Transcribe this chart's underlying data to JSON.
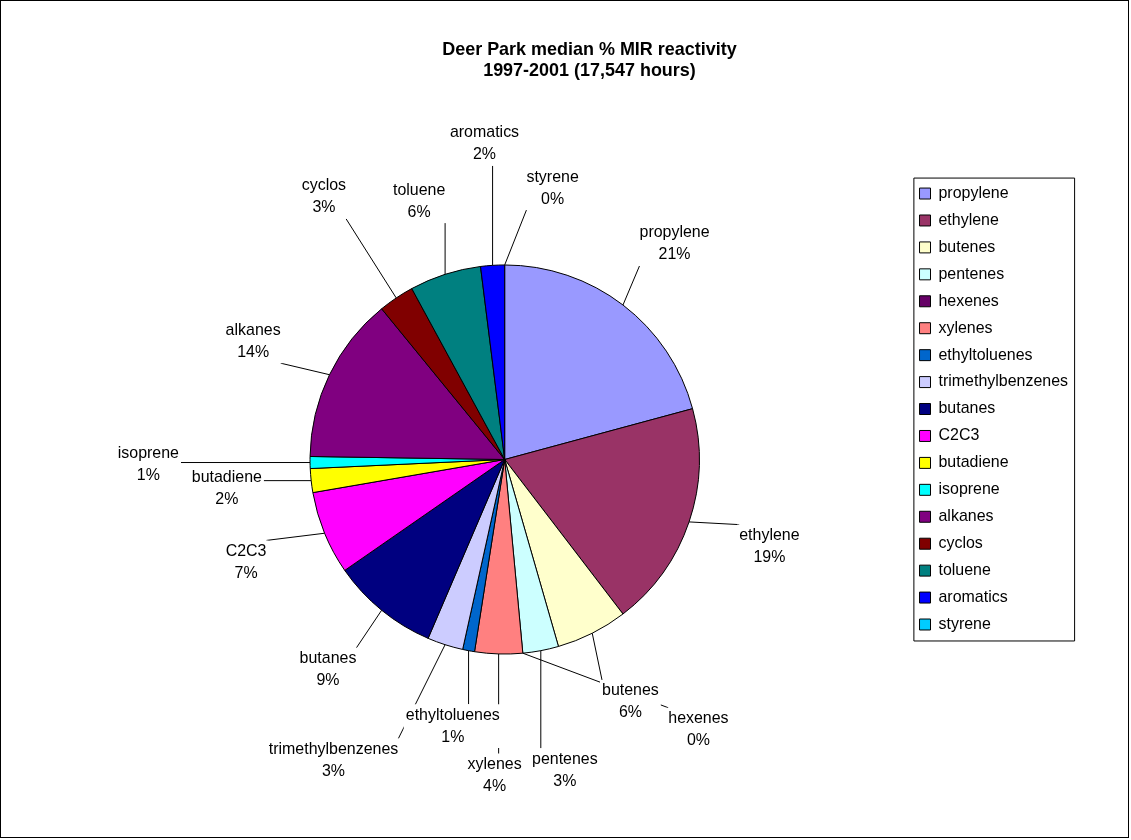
{
  "chart_data": {
    "type": "pie",
    "title": "Deer Park median % MIR reactivity\n1997-2001 (17,547 hours)",
    "categories": [
      "propylene",
      "ethylene",
      "butenes",
      "pentenes",
      "hexenes",
      "xylenes",
      "ethyltoluenes",
      "trimethylbenzenes",
      "butanes",
      "C2C3",
      "butadiene",
      "isoprene",
      "alkanes",
      "cyclos",
      "toluene",
      "aromatics",
      "styrene"
    ],
    "values": [
      21,
      19,
      6,
      3,
      0,
      4,
      1,
      3,
      9,
      7,
      2,
      1,
      14,
      3,
      6,
      2,
      0
    ],
    "value_labels": [
      "21%",
      "19%",
      "6%",
      "3%",
      "0%",
      "4%",
      "1%",
      "3%",
      "9%",
      "7%",
      "2%",
      "1%",
      "14%",
      "3%",
      "6%",
      "2%",
      "0%"
    ],
    "colors": [
      "#9999ff",
      "#993366",
      "#ffffcc",
      "#ccffff",
      "#660066",
      "#ff8080",
      "#0066cc",
      "#ccccff",
      "#000080",
      "#ff00ff",
      "#ffff00",
      "#00ffff",
      "#800080",
      "#800000",
      "#008080",
      "#0000ff",
      "#00ccff"
    ],
    "legend": "right"
  }
}
